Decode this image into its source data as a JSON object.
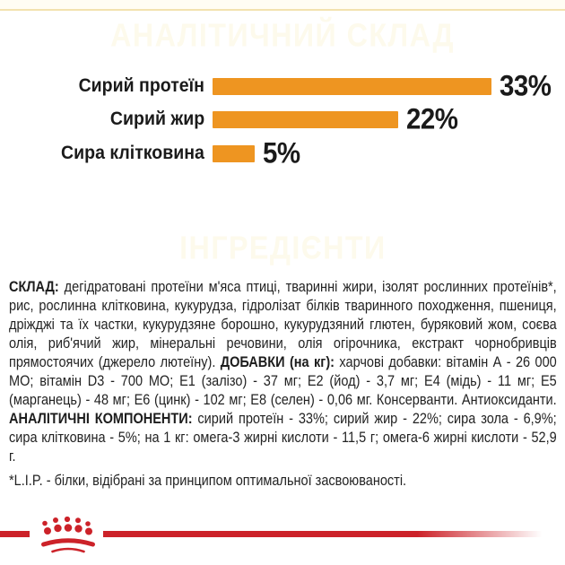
{
  "colors": {
    "accent_orange": "#EE9521",
    "brand_red": "#CC2229",
    "header_text": "#FDFAEC",
    "body_text": "#232323"
  },
  "sections": {
    "analytical_header": "АНАЛІТИЧНИЙ СКЛАД",
    "ingredients_header": "ІНГРЕДІЄНТИ"
  },
  "chart_data": {
    "type": "bar",
    "orientation": "horizontal",
    "title": "АНАЛІТИЧНИЙ СКЛАД",
    "categories": [
      "Сирий протеїн",
      "Сирий жир",
      "Сира клітковина"
    ],
    "values": [
      33,
      22,
      5
    ],
    "value_labels": [
      "33%",
      "22%",
      "5%"
    ],
    "xlim": [
      0,
      35
    ],
    "grid": false,
    "legend": false,
    "bar_color": "#EE9521",
    "label_color": "#1A1A1A"
  },
  "ingredients": {
    "segments": [
      {
        "bold": true,
        "text": "СКЛАД: "
      },
      {
        "bold": false,
        "text": "дегідратовані протеїни м'яса птиці, тваринні жири, ізолят рослинних протеїнів*, рис, рослинна клітковина, кукурудза, гідролізат білків тваринного походження, пшениця, дріжджі та їх частки, кукурудзяне борошно, кукурудзяний глютен, буряковий жом, соєва олія, риб'ячий жир, мінеральні речовини, олія огірочника, екстракт чорнобривців прямостоячих (джерело лютеїну). "
      },
      {
        "bold": true,
        "text": "ДОБАВКИ (на кг): "
      },
      {
        "bold": false,
        "text": "харчові добавки: вітамін А - 26 000 МО; вітамін D3 - 700 МО; Е1 (залізо) - 37 мг; Е2 (йод) - 3,7 мг; Е4 (мідь) - 11 мг; Е5 (марганець) - 48 мг; Е6 (цинк) - 102 мг; Е8 (селен) - 0,06 мг. Консерванти. Антиоксиданти. "
      },
      {
        "bold": true,
        "text": "АНАЛІТИЧНІ КОМПОНЕНТИ: "
      },
      {
        "bold": false,
        "text": "сирий протеїн - 33%; сирий жир - 22%; сира зола - 6,9%; сира клітковина - 5%; на 1 кг: омега-3 жирні кислоти - 11,5 г; омега-6 жирні кислоти - 52,9 г."
      }
    ],
    "footnote": "*L.I.P. - білки, відібрані за принципом оптимальної засвоюваності."
  },
  "footer": {
    "logo_icon": "royal-canin-crown-logo"
  }
}
